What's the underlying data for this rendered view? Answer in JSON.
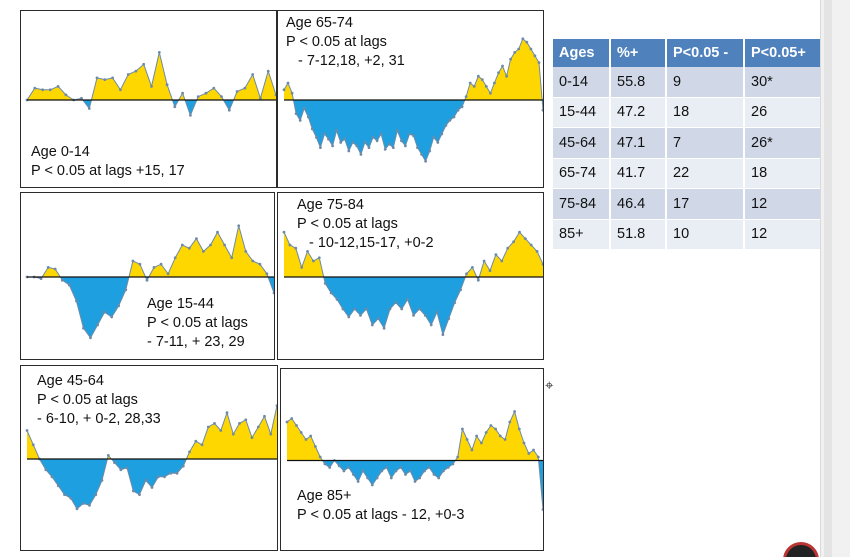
{
  "colors": {
    "positive": "#ffd700",
    "negative": "#1e9fe0",
    "line": "#6e8aa6",
    "baseline": "#111111",
    "header": "#4f81bd"
  },
  "chart_data": [
    {
      "type": "area",
      "annotation": [
        "Age 0-14",
        "P < 0.05 at lags +15, 17"
      ],
      "ylim": [
        0,
        100
      ],
      "baseline": 50,
      "x": [
        1,
        2,
        3,
        4,
        5,
        6,
        7,
        8,
        9,
        10,
        11,
        12,
        13,
        14,
        15,
        16,
        17,
        18,
        19,
        20,
        21,
        22,
        23,
        24,
        25,
        26,
        27,
        28,
        29,
        30,
        31,
        32,
        33
      ],
      "values": [
        50,
        57,
        56,
        56,
        58,
        53,
        50,
        51,
        45,
        63,
        62,
        63,
        56,
        65,
        67,
        71,
        58,
        78,
        59,
        46,
        54,
        41,
        52,
        54,
        57,
        52,
        44,
        55,
        57,
        65,
        51,
        67,
        53
      ]
    },
    {
      "type": "area",
      "annotation": [
        "Age 65-74",
        "P < 0.05 at lags",
        "- 7-12,18, +2, 31"
      ],
      "ylim": [
        0,
        100
      ],
      "baseline": 50,
      "x": [
        1,
        2,
        3,
        4,
        5,
        6,
        7,
        8,
        9,
        10,
        11,
        12,
        13,
        14,
        15,
        16,
        17,
        18,
        19,
        20,
        21,
        22,
        23,
        24,
        25,
        26,
        27,
        28,
        29,
        30,
        31,
        32,
        33,
        34,
        35,
        36,
        37,
        38,
        39,
        40,
        41,
        42,
        43,
        44,
        45,
        46,
        47,
        48,
        49,
        50,
        51,
        52,
        53,
        54,
        55,
        56,
        57,
        58,
        59,
        60,
        61,
        62,
        63,
        64,
        65
      ],
      "values": [
        56,
        60,
        54,
        42,
        38,
        45,
        40,
        33,
        28,
        22,
        30,
        27,
        23,
        32,
        25,
        27,
        20,
        25,
        23,
        18,
        25,
        22,
        28,
        26,
        30,
        21,
        24,
        22,
        32,
        26,
        23,
        30,
        29,
        22,
        18,
        14,
        20,
        28,
        25,
        30,
        35,
        38,
        40,
        44,
        46,
        52,
        60,
        58,
        64,
        62,
        58,
        54,
        60,
        66,
        70,
        64,
        74,
        78,
        80,
        86,
        84,
        80,
        76,
        72,
        44
      ]
    },
    {
      "type": "area",
      "annotation": [
        "Age 15-44",
        "P < 0.05 at lags",
        "-  7-11, + 23, 29"
      ],
      "ylim": [
        0,
        100
      ],
      "baseline": 50,
      "x": [
        1,
        2,
        3,
        4,
        5,
        6,
        7,
        8,
        9,
        10,
        11,
        12,
        13,
        14,
        15,
        16,
        17,
        18,
        19,
        20,
        21,
        22,
        23,
        24,
        25,
        26,
        27,
        28,
        29,
        30,
        31,
        32,
        33,
        34,
        35,
        36
      ],
      "values": [
        50,
        50,
        49,
        56,
        55,
        48,
        45,
        35,
        18,
        12,
        20,
        28,
        25,
        32,
        42,
        60,
        58,
        48,
        56,
        58,
        52,
        62,
        70,
        68,
        74,
        66,
        70,
        78,
        70,
        62,
        82,
        66,
        60,
        58,
        52,
        40
      ]
    },
    {
      "type": "area",
      "annotation": [
        "Age 75-84",
        "P < 0.05 at lags",
        "- 10-12,15-17, +0-2"
      ],
      "ylim": [
        0,
        100
      ],
      "baseline": 50,
      "x": [
        1,
        2,
        3,
        4,
        5,
        6,
        7,
        8,
        9,
        10,
        11,
        12,
        13,
        14,
        15,
        16,
        17,
        18,
        19,
        20,
        21,
        22,
        23,
        24,
        25,
        26,
        27,
        28,
        29,
        30,
        31,
        32,
        33,
        34,
        35,
        36,
        37,
        38,
        39,
        40,
        41,
        42,
        43,
        44,
        45
      ],
      "values": [
        78,
        70,
        68,
        56,
        66,
        60,
        62,
        46,
        40,
        36,
        30,
        25,
        30,
        26,
        30,
        20,
        24,
        18,
        30,
        34,
        30,
        36,
        26,
        30,
        26,
        20,
        28,
        14,
        24,
        34,
        42,
        52,
        56,
        48,
        60,
        54,
        64,
        60,
        68,
        72,
        78,
        74,
        70,
        66,
        58
      ]
    },
    {
      "type": "area",
      "annotation": [
        "Age 45-64",
        "P < 0.05 at lags",
        "-  6-10, + 0-2, 28,33"
      ],
      "ylim": [
        0,
        100
      ],
      "baseline": 50,
      "x": [
        1,
        2,
        3,
        4,
        5,
        6,
        7,
        8,
        9,
        10,
        11,
        12,
        13,
        14,
        15,
        16,
        17,
        18,
        19,
        20,
        21,
        22,
        23,
        24,
        25,
        26,
        27,
        28,
        29,
        30,
        31,
        32,
        33,
        34,
        35,
        36,
        37,
        38,
        39,
        40,
        41
      ],
      "values": [
        66,
        58,
        50,
        44,
        40,
        35,
        30,
        28,
        22,
        25,
        24,
        30,
        38,
        52,
        48,
        44,
        45,
        32,
        30,
        38,
        34,
        40,
        40,
        42,
        42,
        46,
        54,
        60,
        58,
        68,
        70,
        66,
        76,
        64,
        70,
        72,
        62,
        68,
        74,
        64,
        80
      ]
    },
    {
      "type": "area",
      "annotation": [
        "Age 85+",
        "P < 0.05 at lags - 12, +0-3"
      ],
      "ylim": [
        0,
        100
      ],
      "baseline": 50,
      "x": [
        1,
        2,
        3,
        4,
        5,
        6,
        7,
        8,
        9,
        10,
        11,
        12,
        13,
        14,
        15,
        16,
        17,
        18,
        19,
        20,
        21,
        22,
        23,
        24,
        25,
        26,
        27,
        28,
        29,
        30,
        31,
        32,
        33,
        34,
        35,
        36,
        37,
        38,
        39,
        40,
        41,
        42,
        43,
        44,
        45,
        46,
        47,
        48,
        49,
        50,
        51,
        52,
        53,
        54,
        55
      ],
      "values": [
        72,
        74,
        70,
        66,
        62,
        64,
        58,
        52,
        48,
        46,
        50,
        47,
        44,
        46,
        42,
        38,
        44,
        40,
        36,
        40,
        44,
        46,
        40,
        44,
        46,
        42,
        44,
        38,
        40,
        44,
        46,
        42,
        40,
        44,
        46,
        48,
        52,
        68,
        62,
        56,
        64,
        60,
        66,
        70,
        68,
        64,
        62,
        72,
        78,
        68,
        60,
        54,
        56,
        52,
        22
      ]
    }
  ],
  "table": {
    "headers": [
      "Ages",
      "%+",
      "P<0.05 -",
      "P<0.05+"
    ],
    "rows": [
      [
        "0-14",
        "55.8",
        "9",
        "30*"
      ],
      [
        "15-44",
        "47.2",
        "18",
        "26"
      ],
      [
        "45-64",
        "47.1",
        "7",
        "26*"
      ],
      [
        "65-74",
        "41.7",
        "22",
        "18"
      ],
      [
        "75-84",
        "46.4",
        "17",
        "12"
      ],
      [
        "85+",
        "51.8",
        "10",
        "12"
      ]
    ]
  }
}
